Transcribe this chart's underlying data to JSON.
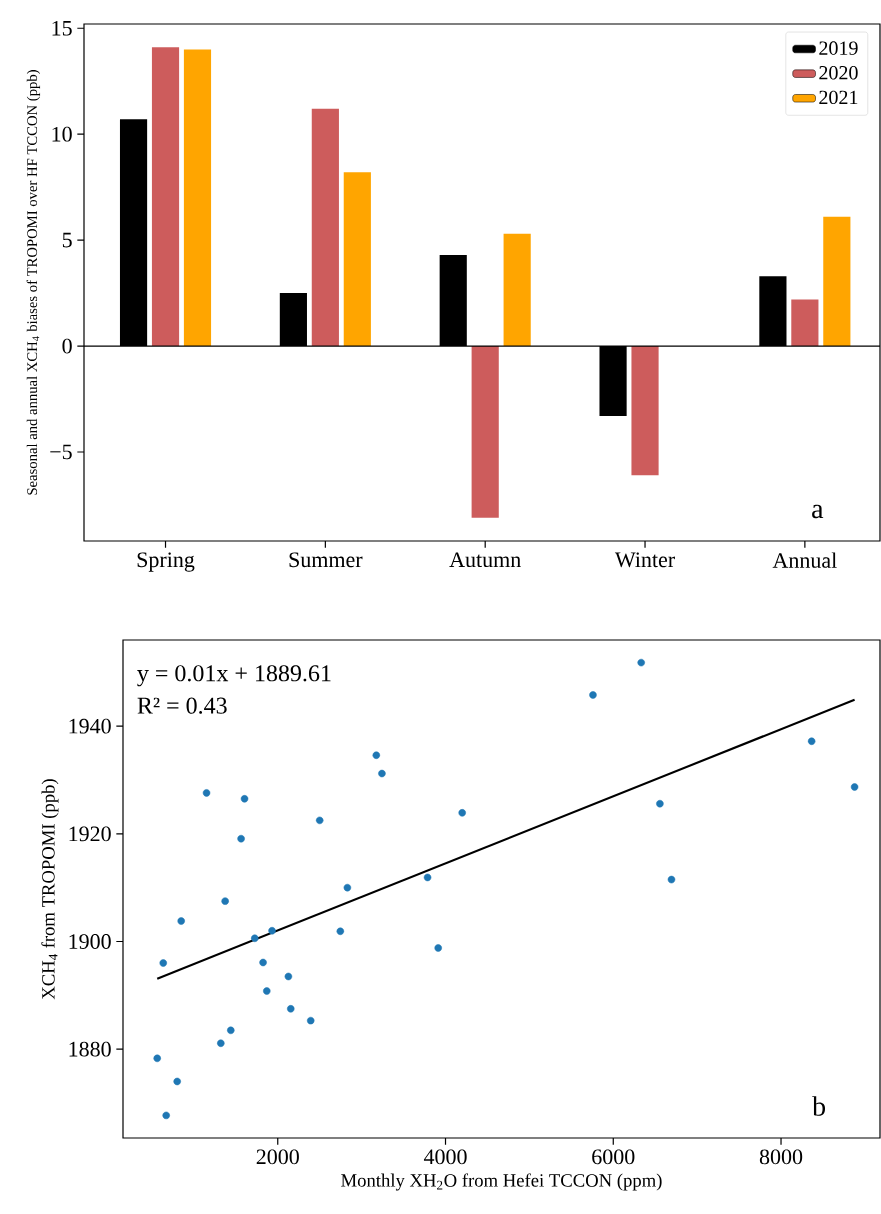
{
  "chart_data": [
    {
      "type": "bar",
      "ylabel": "Seasonal and annual XCH$_{4}$ biases of TROPOMI over HF TCCON (ppb)",
      "categories": [
        "Spring",
        "Summer",
        "Autumn",
        "Winter",
        "Annual"
      ],
      "series": [
        {
          "name": "2019",
          "color": "#000000",
          "values": [
            10.7,
            2.5,
            4.3,
            -3.3,
            3.3
          ]
        },
        {
          "name": "2020",
          "color": "#cd5c5c",
          "values": [
            14.1,
            11.2,
            -8.1,
            -6.1,
            2.2
          ]
        },
        {
          "name": "2021",
          "color": "#ffa500",
          "values": [
            14.0,
            8.2,
            5.3,
            null,
            6.1
          ]
        }
      ],
      "ylim": [
        -9.2,
        15.2
      ],
      "yticks": [
        {
          "value": -5,
          "label": "−5"
        },
        0,
        5,
        10,
        15
      ],
      "ref_lines": [
        {
          "axis": "y",
          "value": 0,
          "color": "#000000"
        }
      ],
      "legend": "top right",
      "annotations": [
        "a"
      ]
    },
    {
      "type": "scatter",
      "xlabel": "Monthly XH$_{2}$O from Hefei TCCON  (ppm)",
      "ylabel": "XCH$_{4}$ from TROPOMI  (ppb)",
      "series": [
        {
          "type": "scatter",
          "color": "#1f77b4",
          "marker": "circle",
          "x": [
            1151,
            1604,
            1563,
            2500,
            3175,
            3242,
            4199,
            3786,
            2830,
            1373,
            849,
            1932,
            1726,
            2746,
            3913,
            635,
            1825,
            2127,
            1869,
            2155,
            2393,
            1440,
            1321,
            563,
            801,
            670,
            6333,
            5758,
            8365,
            8877,
            6556,
            6694
          ],
          "values": [
            1927.6,
            1926.5,
            1919.1,
            1922.5,
            1934.6,
            1931.2,
            1923.9,
            1911.9,
            1910.0,
            1907.5,
            1903.8,
            1902.0,
            1900.6,
            1901.9,
            1898.8,
            1896.0,
            1896.1,
            1893.5,
            1890.8,
            1887.5,
            1885.3,
            1883.5,
            1881.1,
            1878.3,
            1874.0,
            1867.7,
            1951.8,
            1945.8,
            1937.2,
            1928.7,
            1925.6,
            1911.5
          ]
        },
        {
          "type": "line",
          "color": "#000000",
          "x": [
            563,
            8877
          ],
          "values": [
            1893.1,
            1944.9
          ]
        }
      ],
      "xlim": [
        155,
        9180
      ],
      "ylim": [
        1863.5,
        1956
      ],
      "xticks": [
        2000,
        4000,
        6000,
        8000
      ],
      "yticks": [
        1880,
        1900,
        1920,
        1940
      ],
      "annotations": [
        "y = 0.01x + 1889.61",
        "R² = 0.43",
        "b"
      ]
    }
  ]
}
